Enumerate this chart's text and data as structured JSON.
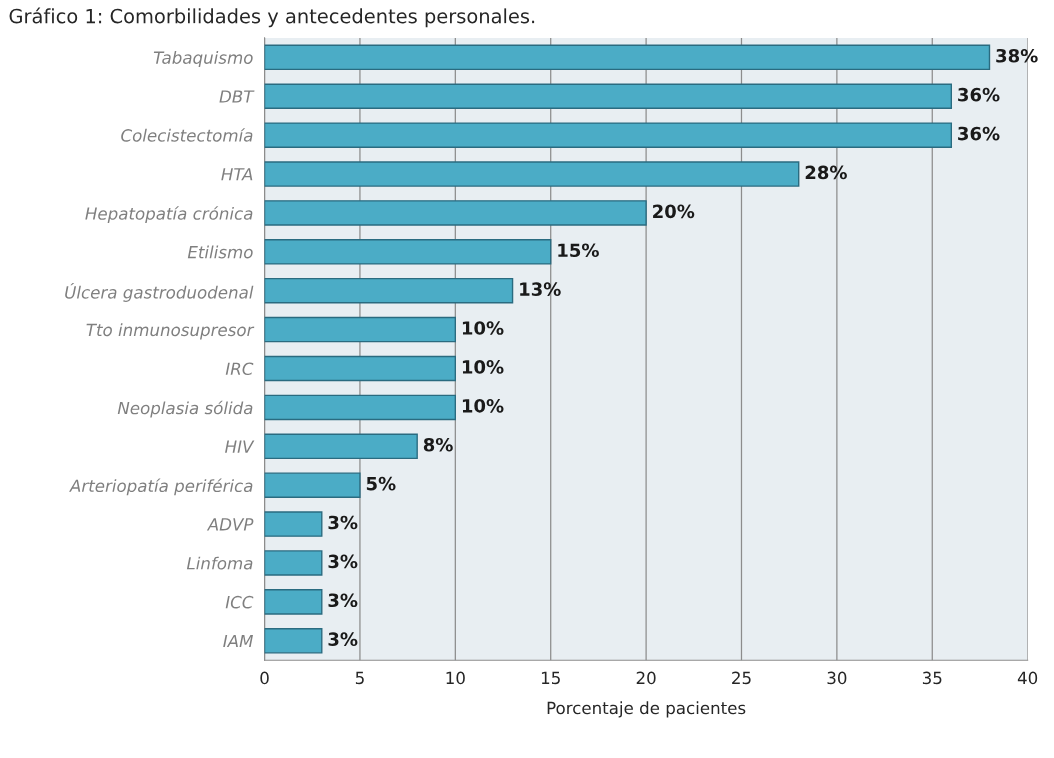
{
  "chart_data": {
    "type": "bar",
    "orientation": "horizontal",
    "title": "Gráfico 1: Comorbilidades y antecedentes personales.",
    "xlabel": "Porcentaje de pacientes",
    "categories": [
      "Tabaquismo",
      "DBT",
      "Colecistectomía",
      "HTA",
      "Hepatopatía crónica",
      "Etilismo",
      "Úlcera gastroduodenal",
      "Tto inmunosupresor",
      "IRC",
      "Neoplasia sólida",
      "HIV",
      "Arteriopatía periférica",
      "ADVP",
      "Linfoma",
      "ICC",
      "IAM"
    ],
    "values": [
      38,
      36,
      36,
      28,
      20,
      15,
      13,
      10,
      10,
      10,
      8,
      5,
      3,
      3,
      3,
      3
    ],
    "value_labels": [
      "38%",
      "36%",
      "36%",
      "28%",
      "20%",
      "15%",
      "13%",
      "10%",
      "10%",
      "10%",
      "8%",
      "5%",
      "3%",
      "3%",
      "3%",
      "3%"
    ],
    "color": "#4bacc6",
    "xlim": [
      0,
      40
    ],
    "xticks": [
      0,
      5,
      10,
      15,
      20,
      25,
      30,
      35,
      40
    ],
    "grid": "x",
    "legend": false
  }
}
